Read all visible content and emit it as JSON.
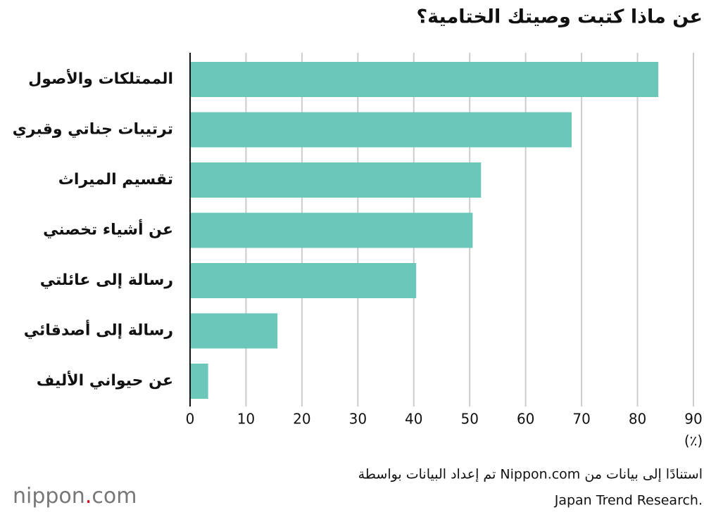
{
  "chart_data": {
    "type": "barh",
    "title": "عن ماذا كتبت وصيتك الختامية؟",
    "categories": [
      "الممتلكات والأصول",
      "ترتيبات جناتي وقبري",
      "تقسيم الميراث",
      "عن أشياء تخصني",
      "رسالة إلى عائلتي",
      "رسالة إلى أصدقائي",
      "عن حيواني الأليف"
    ],
    "values": [
      83.6,
      68.1,
      51.9,
      50.4,
      40.3,
      15.5,
      3.1
    ],
    "color": "#6cc7bb",
    "xlim": [
      0,
      90
    ],
    "xticks": [
      0,
      10,
      20,
      30,
      40,
      50,
      60,
      70,
      80,
      90
    ],
    "grid": true,
    "unit_label": "(٪)",
    "source_lines": [
      "تم إعداد البيانات بواسطة Nippon.com استنادًا إلى بيانات من",
      "Japan Trend Research."
    ],
    "logo": [
      "nippon",
      ".",
      "com"
    ]
  }
}
